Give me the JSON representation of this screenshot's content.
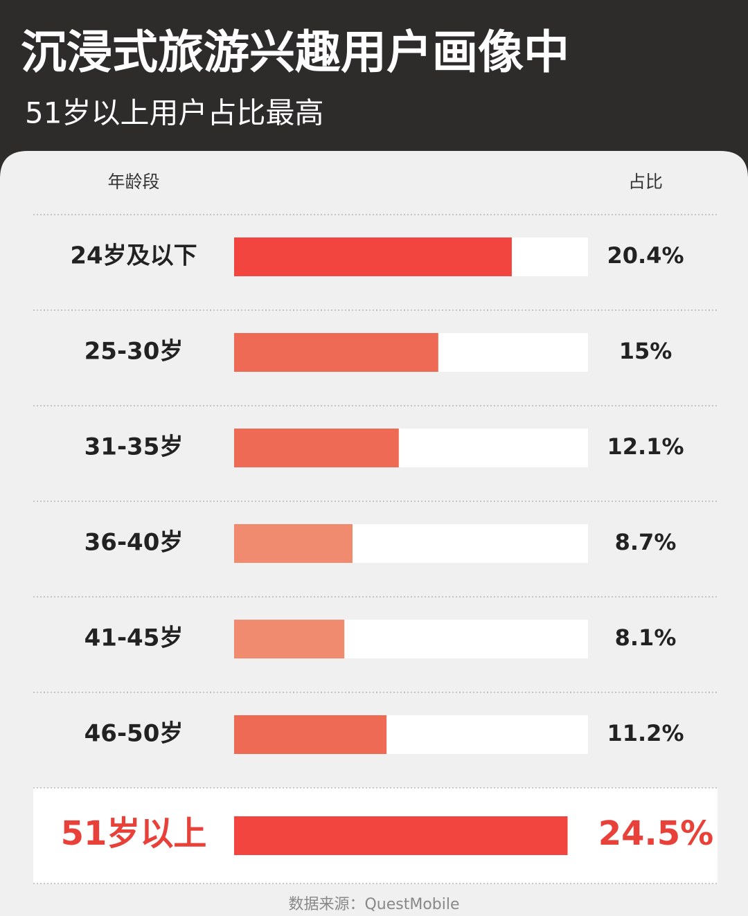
{
  "chart_data": {
    "type": "bar",
    "orientation": "horizontal",
    "title": "沉浸式旅游兴趣用户画像中",
    "subtitle": "51岁以上用户占比最高",
    "category_header": "年龄段",
    "value_header": "占比",
    "categories": [
      "24岁及以下",
      "25-30岁",
      "31-35岁",
      "36-40岁",
      "41-45岁",
      "46-50岁",
      "51岁以上"
    ],
    "values": [
      20.4,
      15,
      12.1,
      8.7,
      8.1,
      11.2,
      24.5
    ],
    "value_labels": [
      "20.4%",
      "15%",
      "12.1%",
      "8.7%",
      "8.1%",
      "11.2%",
      "24.5%"
    ],
    "colors": [
      "#f2453f",
      "#ee6a55",
      "#ee6a55",
      "#f08b6f",
      "#f08b6f",
      "#ee6a55",
      "#f2453f"
    ],
    "highlight_index": 6,
    "highlight_color": "#e8413a",
    "xlim": [
      0,
      26
    ],
    "source": "数据来源：QuestMobile"
  }
}
